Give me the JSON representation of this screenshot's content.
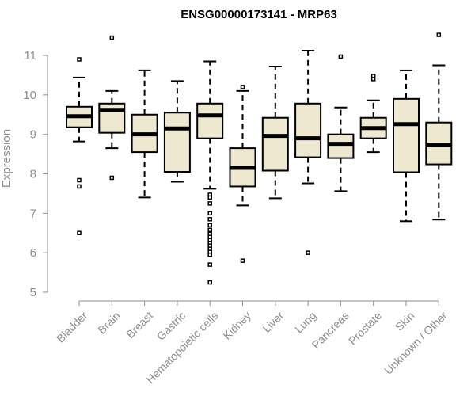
{
  "chart_data": {
    "type": "box",
    "title": "ENSG00000173141 - MRP63",
    "xlabel": "",
    "ylabel": "Expression",
    "ylim": [
      5,
      11.5
    ],
    "yticks": [
      5,
      6,
      7,
      8,
      9,
      10,
      11
    ],
    "categories": [
      "Bladder",
      "Brain",
      "Breast",
      "Gastric",
      "Hematopoietic cells",
      "Kidney",
      "Liver",
      "Lung",
      "Pancreas",
      "Prostate",
      "Skin",
      "Unknown / Other"
    ],
    "boxes": [
      {
        "whisker_low": 8.82,
        "q1": 9.18,
        "median": 9.46,
        "q3": 9.7,
        "whisker_high": 10.44,
        "outliers": [
          10.9,
          7.84,
          7.68,
          6.5
        ]
      },
      {
        "whisker_low": 8.65,
        "q1": 9.04,
        "median": 9.62,
        "q3": 9.78,
        "whisker_high": 10.1,
        "outliers": [
          11.45,
          7.9
        ]
      },
      {
        "whisker_low": 7.4,
        "q1": 8.55,
        "median": 9.0,
        "q3": 9.5,
        "whisker_high": 10.62,
        "outliers": []
      },
      {
        "whisker_low": 7.8,
        "q1": 8.05,
        "median": 9.15,
        "q3": 9.55,
        "whisker_high": 10.35,
        "outliers": []
      },
      {
        "whisker_low": 7.62,
        "q1": 8.9,
        "median": 9.48,
        "q3": 9.78,
        "whisker_high": 10.85,
        "outliers": [
          7.47,
          7.4,
          7.25,
          7.0,
          6.85,
          6.7,
          6.58,
          6.48,
          6.4,
          6.32,
          6.25,
          6.18,
          6.1,
          6.02,
          5.95,
          5.7,
          5.25
        ]
      },
      {
        "whisker_low": 7.2,
        "q1": 7.68,
        "median": 8.15,
        "q3": 8.65,
        "whisker_high": 10.1,
        "outliers": [
          10.2,
          5.8
        ]
      },
      {
        "whisker_low": 7.38,
        "q1": 8.08,
        "median": 8.96,
        "q3": 9.42,
        "whisker_high": 10.72,
        "outliers": []
      },
      {
        "whisker_low": 7.76,
        "q1": 8.42,
        "median": 8.9,
        "q3": 9.78,
        "whisker_high": 11.12,
        "outliers": [
          6.0
        ]
      },
      {
        "whisker_low": 7.56,
        "q1": 8.4,
        "median": 8.76,
        "q3": 9.0,
        "whisker_high": 9.68,
        "outliers": [
          10.97
        ]
      },
      {
        "whisker_low": 8.55,
        "q1": 8.9,
        "median": 9.16,
        "q3": 9.42,
        "whisker_high": 9.86,
        "outliers": [
          10.48,
          10.4
        ]
      },
      {
        "whisker_low": 6.8,
        "q1": 8.04,
        "median": 9.26,
        "q3": 9.9,
        "whisker_high": 10.62,
        "outliers": []
      },
      {
        "whisker_low": 6.84,
        "q1": 8.24,
        "median": 8.74,
        "q3": 9.3,
        "whisker_high": 10.75,
        "outliers": [
          11.52
        ]
      }
    ],
    "colors": {
      "box_fill": "#EEE8D0",
      "stroke": "#000000",
      "axis": "#8c8c8c",
      "text": "#8c8c8c"
    }
  }
}
